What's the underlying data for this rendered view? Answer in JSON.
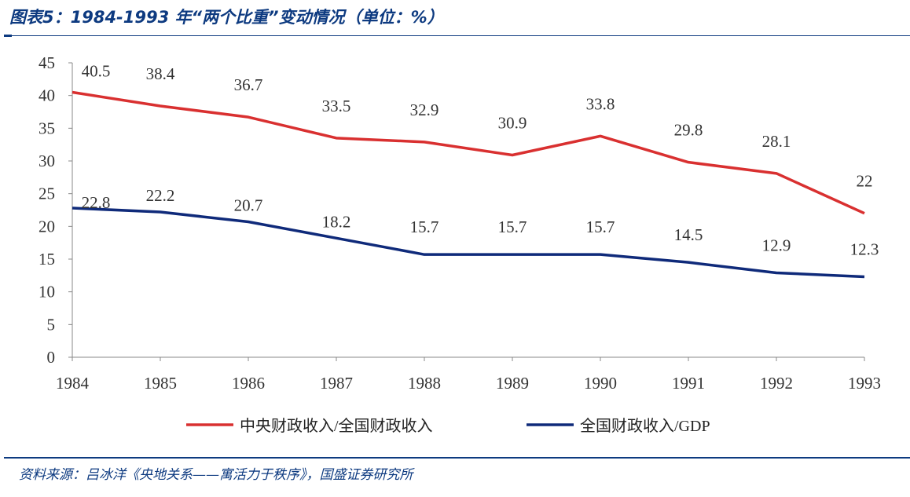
{
  "title": "图表5：1984-1993 年“两个比重”变动情况（单位：%）",
  "source": "资料来源：吕冰洋《央地关系——寓活力于秩序》，国盛证券研究所",
  "chart_data": {
    "type": "line",
    "x": [
      "1984",
      "1985",
      "1986",
      "1987",
      "1988",
      "1989",
      "1990",
      "1991",
      "1992",
      "1993"
    ],
    "ylim": [
      0,
      45
    ],
    "yticks": [
      0,
      5,
      10,
      15,
      20,
      25,
      30,
      35,
      40,
      45
    ],
    "grid": false,
    "legend": "bottom",
    "series": [
      {
        "name": "中央财政收入/全国财政收入",
        "color": "#d93030",
        "values": [
          40.5,
          38.4,
          36.7,
          33.5,
          32.9,
          30.9,
          33.8,
          29.8,
          28.1,
          22
        ]
      },
      {
        "name": "全国财政收入/GDP",
        "color": "#0f2a7a",
        "values": [
          22.8,
          22.2,
          20.7,
          18.2,
          15.7,
          15.7,
          15.7,
          14.5,
          12.9,
          12.3
        ]
      }
    ]
  }
}
